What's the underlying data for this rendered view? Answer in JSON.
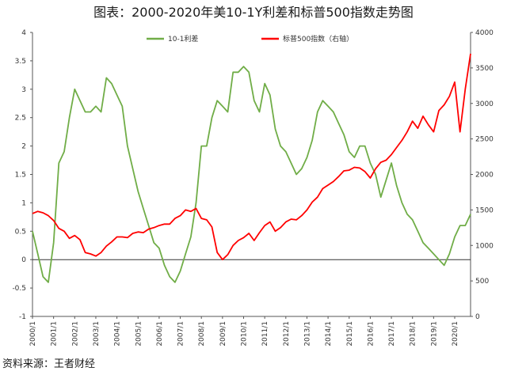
{
  "title": "图表：2000-2020年美10-1Y利差和标普500指数走势图",
  "source": "资料来源：王者财经",
  "colors": {
    "spread": "#70AD47",
    "sp500": "#FF0000",
    "axis": "#555555",
    "zero": "#333333"
  },
  "chart_data": {
    "type": "line",
    "legend_position": "top",
    "grid": false,
    "x_tick_labels": [
      "2000/1",
      "2001/1",
      "2002/1",
      "2003/1",
      "2004/1",
      "2005/1",
      "2006/1",
      "2007/1",
      "2008/1",
      "2009/1",
      "2010/1",
      "2011/1",
      "2012/1",
      "2013/1",
      "2014/1",
      "2015/1",
      "2016/1",
      "2017/1",
      "2018/1",
      "2019/1",
      "2020/1"
    ],
    "x_range": [
      2000.0,
      2020.75
    ],
    "y_left": {
      "range": [
        -1,
        4
      ],
      "ticks": [
        "4",
        "3.5",
        "3",
        "2.5",
        "2",
        "1.5",
        "1",
        "0.5",
        "0",
        "-0.5",
        "-1"
      ],
      "tick_values": [
        4,
        3.5,
        3,
        2.5,
        2,
        1.5,
        1,
        0.5,
        0,
        -0.5,
        -1
      ]
    },
    "y_right": {
      "range": [
        0,
        4000
      ],
      "ticks": [
        "4000",
        "3500",
        "3000",
        "2500",
        "2000",
        "1500",
        "1000",
        "500",
        "0"
      ],
      "tick_values": [
        4000,
        3500,
        3000,
        2500,
        2000,
        1500,
        1000,
        500,
        0
      ]
    },
    "series": [
      {
        "name": "10-1利差",
        "axis": "left",
        "x": [
          2000.0,
          2000.25,
          2000.5,
          2000.75,
          2001.0,
          2001.25,
          2001.5,
          2001.75,
          2002.0,
          2002.25,
          2002.5,
          2002.75,
          2003.0,
          2003.25,
          2003.5,
          2003.75,
          2004.0,
          2004.25,
          2004.5,
          2004.75,
          2005.0,
          2005.25,
          2005.5,
          2005.75,
          2006.0,
          2006.25,
          2006.5,
          2006.75,
          2007.0,
          2007.25,
          2007.5,
          2007.75,
          2008.0,
          2008.25,
          2008.5,
          2008.75,
          2009.0,
          2009.25,
          2009.5,
          2009.75,
          2010.0,
          2010.25,
          2010.5,
          2010.75,
          2011.0,
          2011.25,
          2011.5,
          2011.75,
          2012.0,
          2012.25,
          2012.5,
          2012.75,
          2013.0,
          2013.25,
          2013.5,
          2013.75,
          2014.0,
          2014.25,
          2014.5,
          2014.75,
          2015.0,
          2015.25,
          2015.5,
          2015.75,
          2016.0,
          2016.25,
          2016.5,
          2016.75,
          2017.0,
          2017.25,
          2017.5,
          2017.75,
          2018.0,
          2018.25,
          2018.5,
          2018.75,
          2019.0,
          2019.25,
          2019.5,
          2019.75,
          2020.0,
          2020.25,
          2020.5,
          2020.75
        ],
        "values": [
          0.5,
          0.1,
          -0.3,
          -0.4,
          0.3,
          1.7,
          1.9,
          2.5,
          3.0,
          2.8,
          2.6,
          2.6,
          2.7,
          2.6,
          3.2,
          3.1,
          2.9,
          2.7,
          2.0,
          1.6,
          1.2,
          0.9,
          0.6,
          0.3,
          0.2,
          -0.1,
          -0.3,
          -0.4,
          -0.2,
          0.1,
          0.4,
          1.0,
          2.0,
          2.0,
          2.5,
          2.8,
          2.7,
          2.6,
          3.3,
          3.3,
          3.4,
          3.3,
          2.8,
          2.6,
          3.1,
          2.9,
          2.3,
          2.0,
          1.9,
          1.7,
          1.5,
          1.6,
          1.8,
          2.1,
          2.6,
          2.8,
          2.7,
          2.6,
          2.4,
          2.2,
          1.9,
          1.8,
          2.0,
          2.0,
          1.7,
          1.5,
          1.1,
          1.4,
          1.7,
          1.3,
          1.0,
          0.8,
          0.7,
          0.5,
          0.3,
          0.2,
          0.1,
          0.0,
          -0.1,
          0.1,
          0.4,
          0.6,
          0.6,
          0.8
        ]
      },
      {
        "name": "标普500指数（右轴）",
        "axis": "right",
        "x": [
          2000.0,
          2000.25,
          2000.5,
          2000.75,
          2001.0,
          2001.25,
          2001.5,
          2001.75,
          2002.0,
          2002.25,
          2002.5,
          2002.75,
          2003.0,
          2003.25,
          2003.5,
          2003.75,
          2004.0,
          2004.25,
          2004.5,
          2004.75,
          2005.0,
          2005.25,
          2005.5,
          2005.75,
          2006.0,
          2006.25,
          2006.5,
          2006.75,
          2007.0,
          2007.25,
          2007.5,
          2007.75,
          2008.0,
          2008.25,
          2008.5,
          2008.75,
          2009.0,
          2009.25,
          2009.5,
          2009.75,
          2010.0,
          2010.25,
          2010.5,
          2010.75,
          2011.0,
          2011.25,
          2011.5,
          2011.75,
          2012.0,
          2012.25,
          2012.5,
          2012.75,
          2013.0,
          2013.25,
          2013.5,
          2013.75,
          2014.0,
          2014.25,
          2014.5,
          2014.75,
          2015.0,
          2015.25,
          2015.5,
          2015.75,
          2016.0,
          2016.25,
          2016.5,
          2016.75,
          2017.0,
          2017.25,
          2017.5,
          2017.75,
          2018.0,
          2018.25,
          2018.5,
          2018.75,
          2019.0,
          2019.25,
          2019.5,
          2019.75,
          2020.0,
          2020.25,
          2020.5,
          2020.75
        ],
        "values": [
          1450,
          1480,
          1460,
          1420,
          1350,
          1240,
          1200,
          1100,
          1140,
          1080,
          900,
          880,
          850,
          900,
          990,
          1050,
          1120,
          1120,
          1110,
          1170,
          1190,
          1180,
          1230,
          1250,
          1280,
          1300,
          1300,
          1380,
          1420,
          1500,
          1480,
          1520,
          1380,
          1360,
          1260,
          900,
          800,
          870,
          1000,
          1070,
          1110,
          1170,
          1070,
          1180,
          1280,
          1330,
          1200,
          1250,
          1330,
          1370,
          1360,
          1420,
          1500,
          1610,
          1680,
          1800,
          1850,
          1900,
          1970,
          2050,
          2060,
          2100,
          2090,
          2040,
          1950,
          2080,
          2170,
          2200,
          2280,
          2380,
          2480,
          2600,
          2750,
          2650,
          2820,
          2700,
          2600,
          2900,
          2980,
          3100,
          3300,
          2600,
          3200,
          3700
        ]
      }
    ]
  }
}
